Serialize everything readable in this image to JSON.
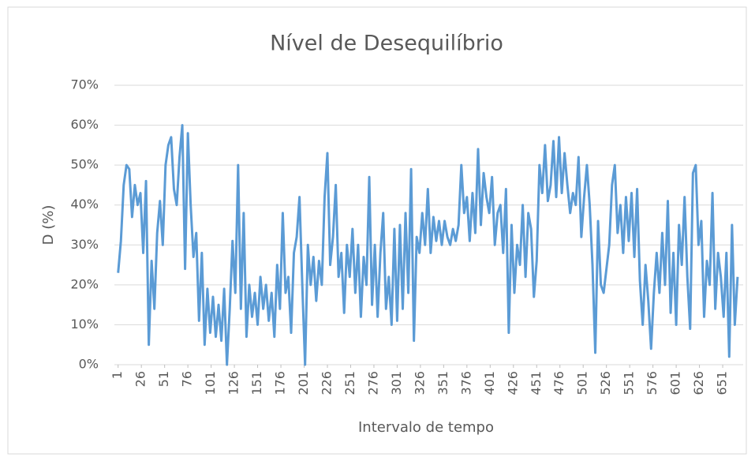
{
  "chart_data": {
    "type": "line",
    "title": "Nível de Desequilíbrio",
    "x_label": "Intervalo de tempo",
    "y_label": "D (%)",
    "x": [
      1,
      4,
      7,
      10,
      13,
      16,
      19,
      22,
      25,
      28,
      31,
      34,
      37,
      40,
      43,
      46,
      49,
      52,
      55,
      58,
      61,
      64,
      67,
      70,
      73,
      76,
      79,
      82,
      85,
      88,
      91,
      94,
      97,
      100,
      103,
      106,
      109,
      112,
      115,
      118,
      121,
      124,
      127,
      130,
      133,
      136,
      139,
      142,
      145,
      148,
      151,
      154,
      157,
      160,
      163,
      166,
      169,
      172,
      175,
      178,
      181,
      184,
      187,
      190,
      193,
      196,
      199,
      202,
      205,
      208,
      211,
      214,
      217,
      220,
      223,
      226,
      229,
      232,
      235,
      238,
      241,
      244,
      247,
      250,
      253,
      256,
      259,
      262,
      265,
      268,
      271,
      274,
      277,
      280,
      283,
      286,
      289,
      292,
      295,
      298,
      301,
      304,
      307,
      310,
      313,
      316,
      319,
      322,
      325,
      328,
      331,
      334,
      337,
      340,
      343,
      346,
      349,
      352,
      355,
      358,
      361,
      364,
      367,
      370,
      373,
      376,
      379,
      382,
      385,
      388,
      391,
      394,
      397,
      400,
      403,
      406,
      409,
      412,
      415,
      418,
      421,
      424,
      427,
      430,
      433,
      436,
      439,
      442,
      445,
      448,
      451,
      454,
      457,
      460,
      463,
      466,
      469,
      472,
      475,
      478,
      481,
      484,
      487,
      490,
      493,
      496,
      499,
      502,
      505,
      508,
      511,
      514,
      517,
      520,
      523,
      526,
      529,
      532,
      535,
      538,
      541,
      544,
      547,
      550,
      553,
      556,
      559,
      562,
      565,
      568,
      571,
      574,
      577,
      580,
      583,
      586,
      589,
      592,
      595,
      598,
      601,
      604,
      607,
      610,
      613,
      616,
      619,
      622,
      625,
      628,
      631,
      634,
      637,
      640,
      643,
      646,
      649,
      652,
      655,
      658,
      661,
      664,
      667
    ],
    "values": [
      23,
      31,
      45,
      50,
      49,
      37,
      45,
      40,
      43,
      28,
      46,
      5,
      26,
      14,
      33,
      41,
      30,
      50,
      55,
      57,
      44,
      40,
      52,
      60,
      24,
      58,
      40,
      27,
      33,
      11,
      28,
      5,
      19,
      8,
      17,
      7,
      15,
      6,
      19,
      0,
      14,
      31,
      18,
      50,
      14,
      38,
      7,
      20,
      12,
      18,
      10,
      22,
      14,
      20,
      11,
      18,
      7,
      25,
      14,
      38,
      18,
      22,
      8,
      28,
      32,
      42,
      20,
      0,
      30,
      20,
      27,
      16,
      26,
      20,
      42,
      53,
      25,
      32,
      45,
      22,
      28,
      13,
      30,
      22,
      34,
      18,
      30,
      12,
      27,
      20,
      47,
      15,
      30,
      12,
      28,
      38,
      14,
      22,
      10,
      34,
      11,
      35,
      14,
      38,
      18,
      49,
      6,
      32,
      28,
      38,
      30,
      44,
      28,
      37,
      31,
      36,
      30,
      36,
      32,
      30,
      34,
      31,
      35,
      50,
      38,
      42,
      31,
      43,
      33,
      54,
      35,
      48,
      42,
      38,
      47,
      30,
      38,
      40,
      28,
      44,
      8,
      35,
      18,
      30,
      25,
      40,
      22,
      38,
      34,
      17,
      26,
      50,
      43,
      55,
      41,
      45,
      56,
      42,
      57,
      43,
      53,
      45,
      38,
      43,
      40,
      52,
      32,
      42,
      50,
      40,
      25,
      3,
      36,
      20,
      18,
      24,
      30,
      45,
      50,
      33,
      40,
      28,
      42,
      31,
      43,
      27,
      44,
      21,
      10,
      25,
      16,
      4,
      18,
      28,
      18,
      33,
      20,
      41,
      13,
      28,
      10,
      35,
      25,
      42,
      22,
      9,
      48,
      50,
      30,
      36,
      12,
      26,
      20,
      43,
      14,
      28,
      22,
      12,
      28,
      2,
      35,
      10,
      22
    ],
    "color": "#5b9bd5",
    "xlim": [
      -3,
      673
    ],
    "xticks": [
      1,
      26,
      51,
      76,
      101,
      126,
      151,
      176,
      201,
      226,
      251,
      276,
      301,
      326,
      351,
      376,
      401,
      426,
      451,
      476,
      501,
      526,
      551,
      576,
      601,
      626,
      651
    ],
    "ylim": [
      0,
      70
    ],
    "yticks": [
      {
        "value": 0,
        "label": "0%"
      },
      {
        "value": 10,
        "label": "10%"
      },
      {
        "value": 20,
        "label": "20%"
      },
      {
        "value": 30,
        "label": "30%"
      },
      {
        "value": 40,
        "label": "40%"
      },
      {
        "value": 50,
        "label": "50%"
      },
      {
        "value": 60,
        "label": "60%"
      },
      {
        "value": 70,
        "label": "70%"
      }
    ],
    "grid": true
  }
}
